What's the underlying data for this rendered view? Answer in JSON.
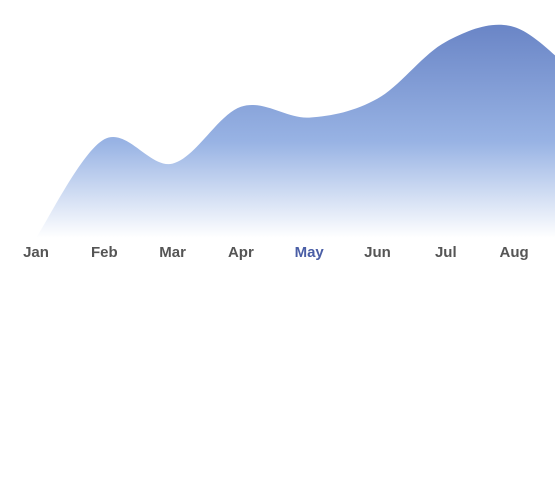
{
  "chart_data": {
    "type": "area",
    "categories": [
      "Jan",
      "Feb",
      "Mar",
      "Apr",
      "May",
      "Jun",
      "Jul",
      "Aug"
    ],
    "values": [
      0,
      73,
      55,
      97,
      89,
      103,
      145,
      156
    ],
    "title": "",
    "xlabel": "",
    "ylabel": "",
    "ylim": [
      0,
      170
    ],
    "highlighted_category": "May",
    "grid": false,
    "legend": "none"
  },
  "colors": {
    "area_top": "#6a85c6",
    "area_mid": "#98b3e4",
    "area_bottom": "#ffffff",
    "label_default": "#555555",
    "label_highlight": "#4a5ea6"
  }
}
